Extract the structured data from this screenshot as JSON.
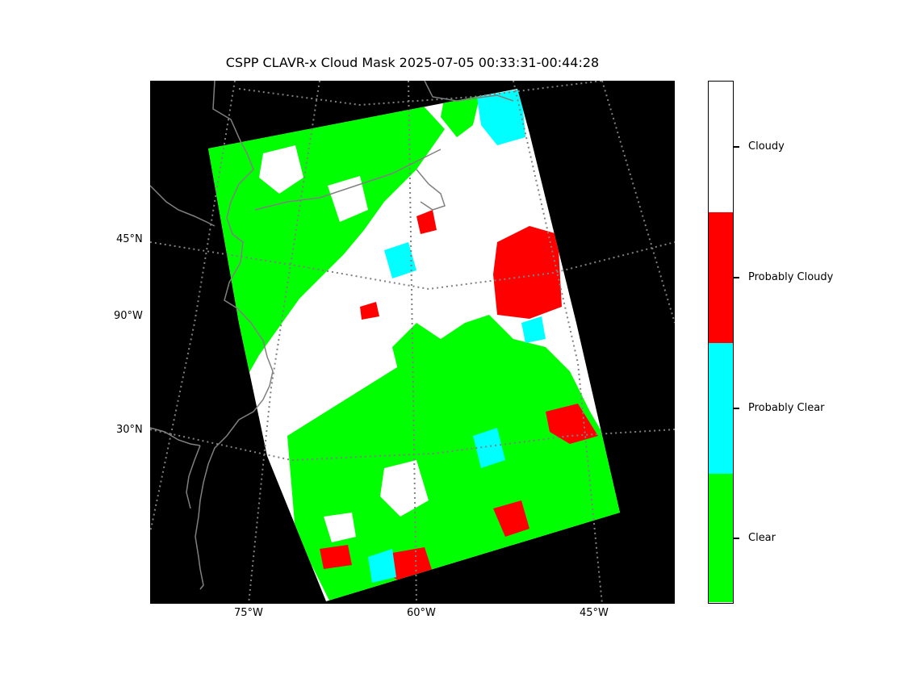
{
  "figure": {
    "title": "CSPP CLAVR-x Cloud Mask 2025-07-05 00:33:31-00:44:28"
  },
  "map": {
    "background_color": "#000000",
    "coastline_color": "#808080",
    "graticule_color": "#808080",
    "lat_labels": [
      "45°N",
      "90°W",
      "30°N"
    ],
    "lon_labels": [
      "75°W",
      "60°W",
      "45°W"
    ]
  },
  "legend": {
    "classes": [
      {
        "label": "Cloudy",
        "color": "#ffffff"
      },
      {
        "label": "Probably Cloudy",
        "color": "#ff0000"
      },
      {
        "label": "Probably Clear",
        "color": "#00ffff"
      },
      {
        "label": "Clear",
        "color": "#00ff00"
      }
    ]
  }
}
